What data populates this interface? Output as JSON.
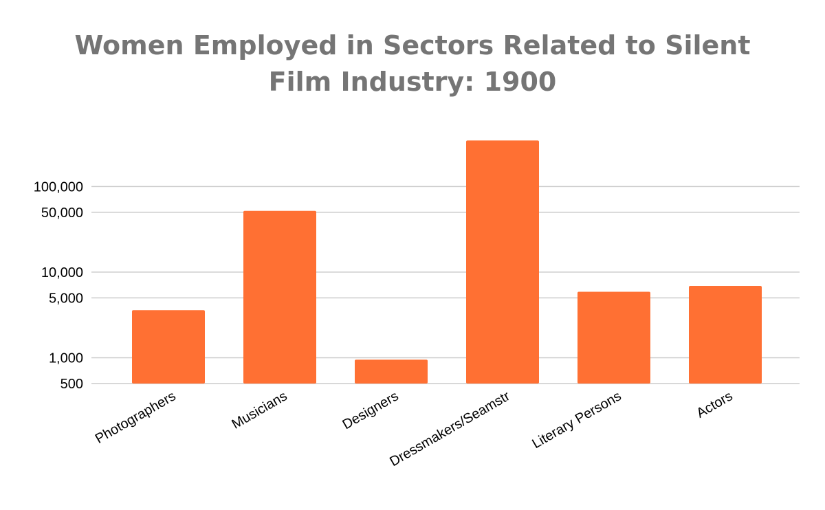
{
  "chart_data": {
    "type": "bar",
    "title_lines": [
      "Women Employed in Sectors Related to Silent",
      "Film Industry: 1900"
    ],
    "categories": [
      "Photographers",
      "Musicians",
      "Designers",
      "Dressmakers/Seamstr",
      "Literary Persons",
      "Actors"
    ],
    "values": [
      3600,
      52000,
      950,
      345000,
      5900,
      6900
    ],
    "y_scale": "log",
    "y_ticks": [
      500,
      1000,
      5000,
      10000,
      50000,
      100000
    ],
    "y_tick_labels": [
      "500",
      "1,000",
      "5,000",
      "10,000",
      "50,000",
      "100,000"
    ],
    "ylim": [
      500,
      350000
    ],
    "grid": true,
    "legend": "none",
    "bar_color": "#ff7033",
    "title_color": "#757575"
  }
}
